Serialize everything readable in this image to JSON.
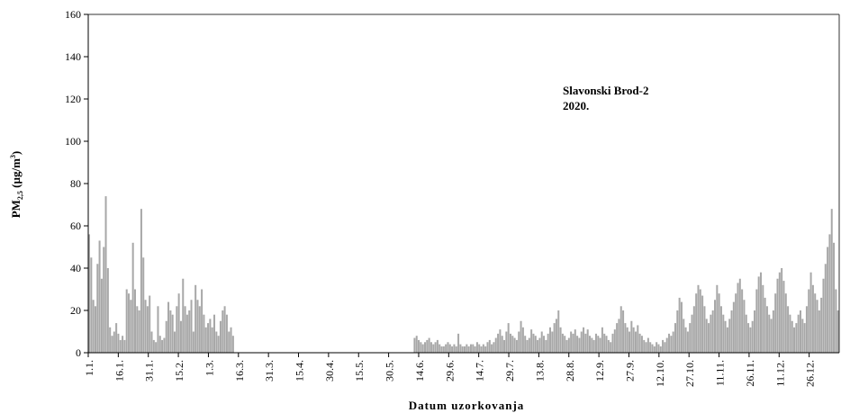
{
  "chart_data": {
    "type": "bar",
    "title": "",
    "annotation": [
      "Slavonski Brod-2",
      "2020."
    ],
    "xlabel": "Datum uzorkovanja",
    "ylabel_main": "PM",
    "ylabel_sub": "2,5",
    "ylabel_unit_pre": " (µg/m",
    "ylabel_unit_sup": "3",
    "ylabel_unit_post": ")",
    "ylim": [
      0,
      160
    ],
    "yticks": [
      0,
      20,
      40,
      60,
      80,
      100,
      120,
      140,
      160
    ],
    "ytick_labels": [
      "0",
      "20",
      "40",
      "60",
      "80",
      "100",
      "120",
      "140",
      "160"
    ],
    "xtick_labels": [
      "1.1.",
      "16.1.",
      "31.1.",
      "15.2.",
      "1.3.",
      "16.3.",
      "31.3.",
      "15.4.",
      "30.4.",
      "15.5.",
      "30.5.",
      "14.6.",
      "29.6.",
      "14.7.",
      "29.7.",
      "13.8.",
      "28.8.",
      "12.9.",
      "27.9.",
      "12.10.",
      "27.10.",
      "11.11.",
      "26.11.",
      "11.12.",
      "26.12."
    ],
    "grid": false,
    "legend": "none",
    "bar_color": "#a8a8a8",
    "series": [
      {
        "values": [
          56,
          45,
          25,
          22,
          42,
          53,
          35,
          50,
          74,
          40,
          12,
          8,
          10,
          14,
          9,
          6,
          8,
          6,
          30,
          28,
          25,
          52,
          30,
          22,
          20,
          68,
          45,
          25,
          22,
          27,
          10,
          6,
          5,
          22,
          8,
          6,
          7,
          15,
          24,
          20,
          18,
          10,
          22,
          28,
          15,
          35,
          22,
          18,
          20,
          25,
          10,
          32,
          25,
          22,
          30,
          18,
          12,
          14,
          16,
          12,
          18,
          10,
          8,
          15,
          20,
          22,
          18,
          10,
          12,
          8,
          null,
          null,
          null,
          null,
          null,
          null,
          null,
          null,
          null,
          null,
          null,
          null,
          null,
          null,
          null,
          null,
          null,
          null,
          null,
          null,
          null,
          null,
          null,
          null,
          null,
          null,
          null,
          null,
          null,
          null,
          null,
          null,
          null,
          null,
          null,
          null,
          null,
          null,
          null,
          null,
          null,
          null,
          null,
          null,
          null,
          null,
          null,
          null,
          null,
          null,
          null,
          null,
          null,
          null,
          null,
          null,
          null,
          null,
          null,
          null,
          null,
          null,
          null,
          null,
          null,
          null,
          null,
          null,
          null,
          null,
          null,
          null,
          null,
          null,
          null,
          null,
          null,
          null,
          null,
          null,
          null,
          null,
          null,
          null,
          null,
          null,
          7,
          8,
          6,
          5,
          4,
          5,
          6,
          7,
          5,
          4,
          5,
          6,
          4,
          3,
          3,
          4,
          5,
          4,
          3,
          4,
          3,
          9,
          4,
          3,
          3,
          4,
          3,
          4,
          4,
          3,
          5,
          4,
          3,
          4,
          3,
          5,
          6,
          4,
          5,
          7,
          9,
          11,
          8,
          6,
          10,
          14,
          9,
          8,
          7,
          6,
          10,
          15,
          12,
          8,
          6,
          7,
          11,
          9,
          8,
          6,
          7,
          10,
          8,
          6,
          9,
          12,
          10,
          14,
          16,
          20,
          12,
          9,
          8,
          6,
          7,
          10,
          9,
          11,
          8,
          7,
          10,
          12,
          9,
          11,
          8,
          7,
          6,
          9,
          8,
          7,
          12,
          9,
          8,
          6,
          5,
          9,
          11,
          14,
          16,
          22,
          20,
          14,
          12,
          10,
          15,
          12,
          10,
          13,
          9,
          8,
          6,
          5,
          7,
          5,
          4,
          3,
          5,
          4,
          3,
          6,
          5,
          7,
          9,
          8,
          10,
          14,
          20,
          26,
          24,
          16,
          12,
          10,
          14,
          18,
          22,
          28,
          32,
          30,
          27,
          22,
          16,
          14,
          18,
          20,
          25,
          32,
          28,
          22,
          18,
          15,
          12,
          16,
          20,
          24,
          28,
          33,
          35,
          30,
          25,
          18,
          14,
          12,
          15,
          20,
          30,
          36,
          38,
          32,
          26,
          22,
          18,
          16,
          20,
          28,
          35,
          38,
          40,
          34,
          28,
          22,
          18,
          15,
          12,
          14,
          18,
          20,
          16,
          14,
          22,
          30,
          38,
          32,
          28,
          25,
          20,
          26,
          35,
          42,
          50,
          56,
          68,
          52,
          30,
          20
        ]
      }
    ]
  }
}
